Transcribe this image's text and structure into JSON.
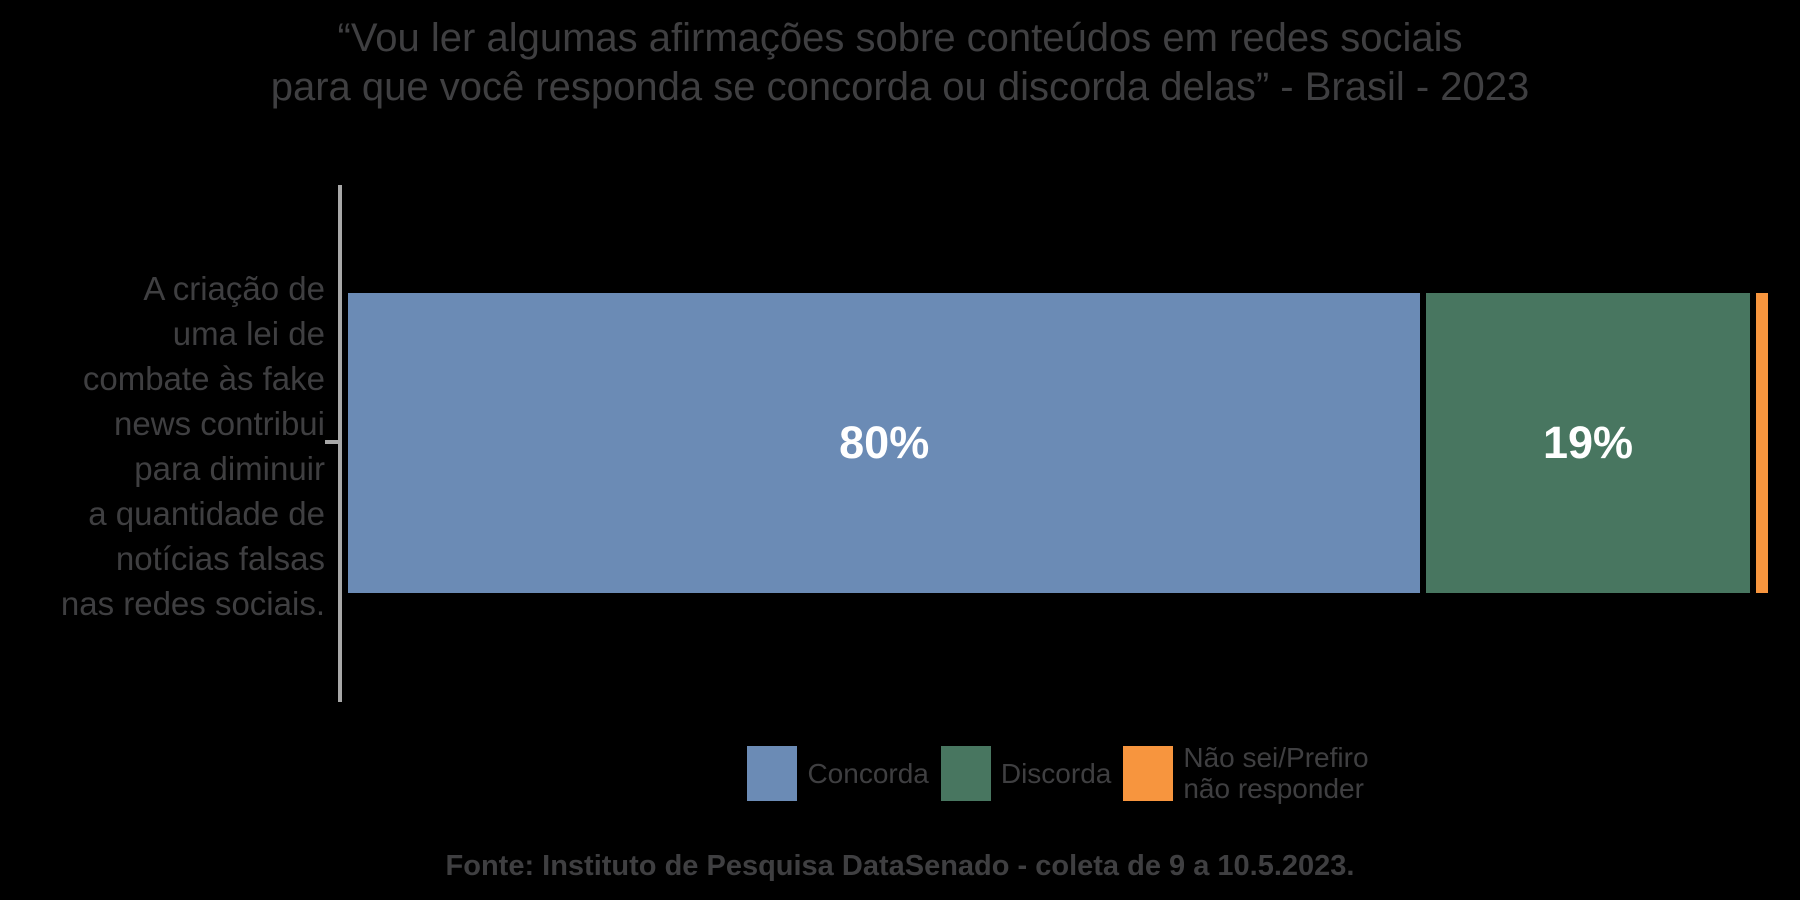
{
  "title": {
    "line1": "“Vou ler algumas afirmações sobre conteúdos em redes sociais",
    "line2": "para que você responda se concorda ou discorda delas” - Brasil - 2023"
  },
  "y_axis": {
    "category_label": "A criação de\numa lei de\ncombate às fake\nnews contribui\npara diminuir\na quantidade de\nnotícias falsas\nnas redes sociais."
  },
  "chart_data": {
    "type": "bar",
    "orientation": "horizontal",
    "stacked": true,
    "title": "“Vou ler algumas afirmações sobre conteúdos em redes sociais para que você responda se concorda ou discorda delas” - Brasil - 2023",
    "categories": [
      "A criação de uma lei de combate às fake news contribui para diminuir a quantidade de notícias falsas nas redes sociais."
    ],
    "series": [
      {
        "name": "Concorda",
        "slug": "concorda",
        "values": [
          80
        ],
        "data_label": "80%",
        "color": "#6b8bb5"
      },
      {
        "name": "Discorda",
        "slug": "discorda",
        "values": [
          19
        ],
        "data_label": "19%",
        "color": "#487660"
      },
      {
        "name": "Não sei/Prefiro não responder",
        "slug": "nao-sei-prefiro-nao-responder",
        "values": [
          1
        ],
        "data_label": "",
        "color": "#f7953e"
      }
    ],
    "xlim": [
      0,
      100
    ],
    "grid": false,
    "legend_position": "bottom",
    "value_unit": "%"
  },
  "legend": {
    "items": [
      {
        "label": "Concorda",
        "color": "#6b8bb5"
      },
      {
        "label": "Discorda",
        "color": "#487660"
      },
      {
        "label": "Não sei/Prefiro\nnão responder",
        "color": "#f7953e"
      }
    ]
  },
  "footer": {
    "source": "Fonte: Instituto de Pesquisa DataSenado - coleta de 9 a 10.5.2023."
  },
  "colors": {
    "background": "#000000",
    "text": "#3f3f41",
    "axis_line": "#a8a8a8",
    "bar_value_label": "#ffffff"
  }
}
